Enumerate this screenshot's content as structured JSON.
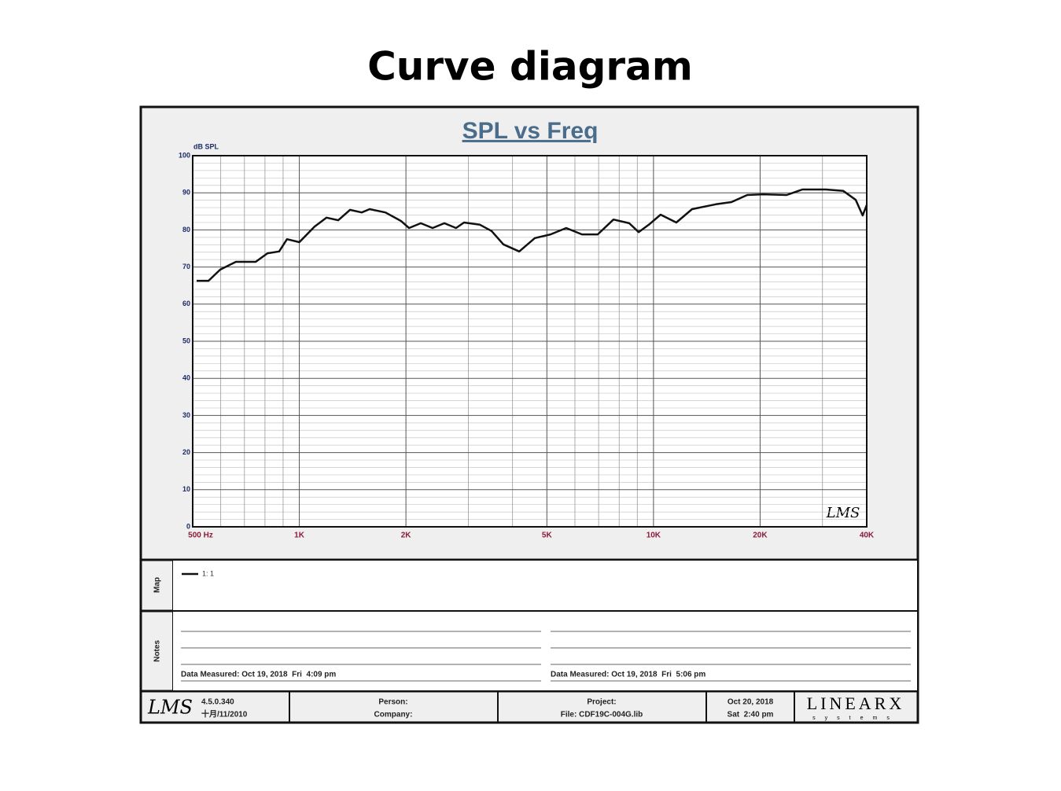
{
  "header": {
    "title": "Curve diagram"
  },
  "chart_data": {
    "type": "line",
    "title": "SPL vs Freq",
    "y_label": "dB SPL",
    "logo": "LMS",
    "x": [
      513,
      554,
      598,
      662,
      753,
      813,
      877,
      923,
      1000,
      1104,
      1194,
      1288,
      1390,
      1500,
      1580,
      1750,
      1937,
      2041,
      2203,
      2378,
      2568,
      2770,
      2918,
      3236,
      3490,
      3768,
      4178,
      4623,
      5120,
      5670,
      6280,
      6960,
      7710,
      8540,
      9080,
      9700,
      10470,
      11600,
      12850,
      15000,
      16600,
      18400,
      20380,
      23770,
      26330,
      30690,
      34350,
      37240,
      38960,
      40000
    ],
    "series": [
      {
        "name": "1: 1",
        "color": "#111111",
        "values": [
          66.3,
          66.3,
          69.3,
          71.4,
          71.4,
          73.7,
          74.2,
          77.5,
          76.7,
          80.9,
          83.3,
          82.6,
          85.4,
          84.7,
          85.6,
          84.7,
          82.4,
          80.5,
          81.8,
          80.5,
          81.8,
          80.5,
          82.0,
          81.4,
          79.7,
          76.1,
          74.2,
          77.8,
          78.8,
          80.5,
          78.8,
          78.8,
          82.8,
          81.8,
          79.4,
          81.4,
          84.1,
          82.0,
          85.6,
          86.9,
          87.5,
          89.4,
          89.6,
          89.4,
          90.9,
          90.9,
          90.5,
          88.1,
          83.9,
          86.7
        ]
      }
    ],
    "xscale": "log",
    "xlim": [
      500,
      40000
    ],
    "xticks": [
      {
        "value": 500,
        "label": "500 Hz"
      },
      {
        "value": 1000,
        "label": "1K"
      },
      {
        "value": 2000,
        "label": "2K"
      },
      {
        "value": 5000,
        "label": "5K"
      },
      {
        "value": 10000,
        "label": "10K"
      },
      {
        "value": 20000,
        "label": "20K"
      },
      {
        "value": 40000,
        "label": "40K"
      }
    ],
    "xminor": [
      600,
      700,
      800,
      900,
      3000,
      4000,
      6000,
      7000,
      8000,
      9000,
      30000
    ],
    "ylim": [
      0,
      100
    ],
    "yticks": [
      0,
      10,
      20,
      30,
      40,
      50,
      60,
      70,
      80,
      90,
      100
    ],
    "yminor": [
      2,
      4,
      6,
      8,
      12,
      14,
      16,
      18,
      22,
      24,
      26,
      28,
      32,
      34,
      36,
      38,
      42,
      44,
      46,
      48,
      52,
      54,
      56,
      58,
      62,
      64,
      66,
      68,
      72,
      74,
      76,
      78,
      82,
      84,
      86,
      88,
      92,
      94,
      96,
      98
    ],
    "grid": true
  },
  "panel": {
    "map_label": "Map",
    "notes_label": "Notes",
    "notes": [
      "Data Measured: Oct 19, 2018  Fri  4:09 pm",
      "Data Measured: Oct 19, 2018  Fri  5:06 pm"
    ],
    "footer": {
      "logo": "LMS",
      "version": "4.5.0.340",
      "version_date": "十月/11/2010",
      "person": "Person:",
      "company": "Company:",
      "project": "Project:",
      "file": "File: CDF19C-004G.lib",
      "date": "Oct 20, 2018",
      "time": "Sat  2:40 pm",
      "brand": "LINEARX",
      "brand_sub": "systems"
    }
  }
}
